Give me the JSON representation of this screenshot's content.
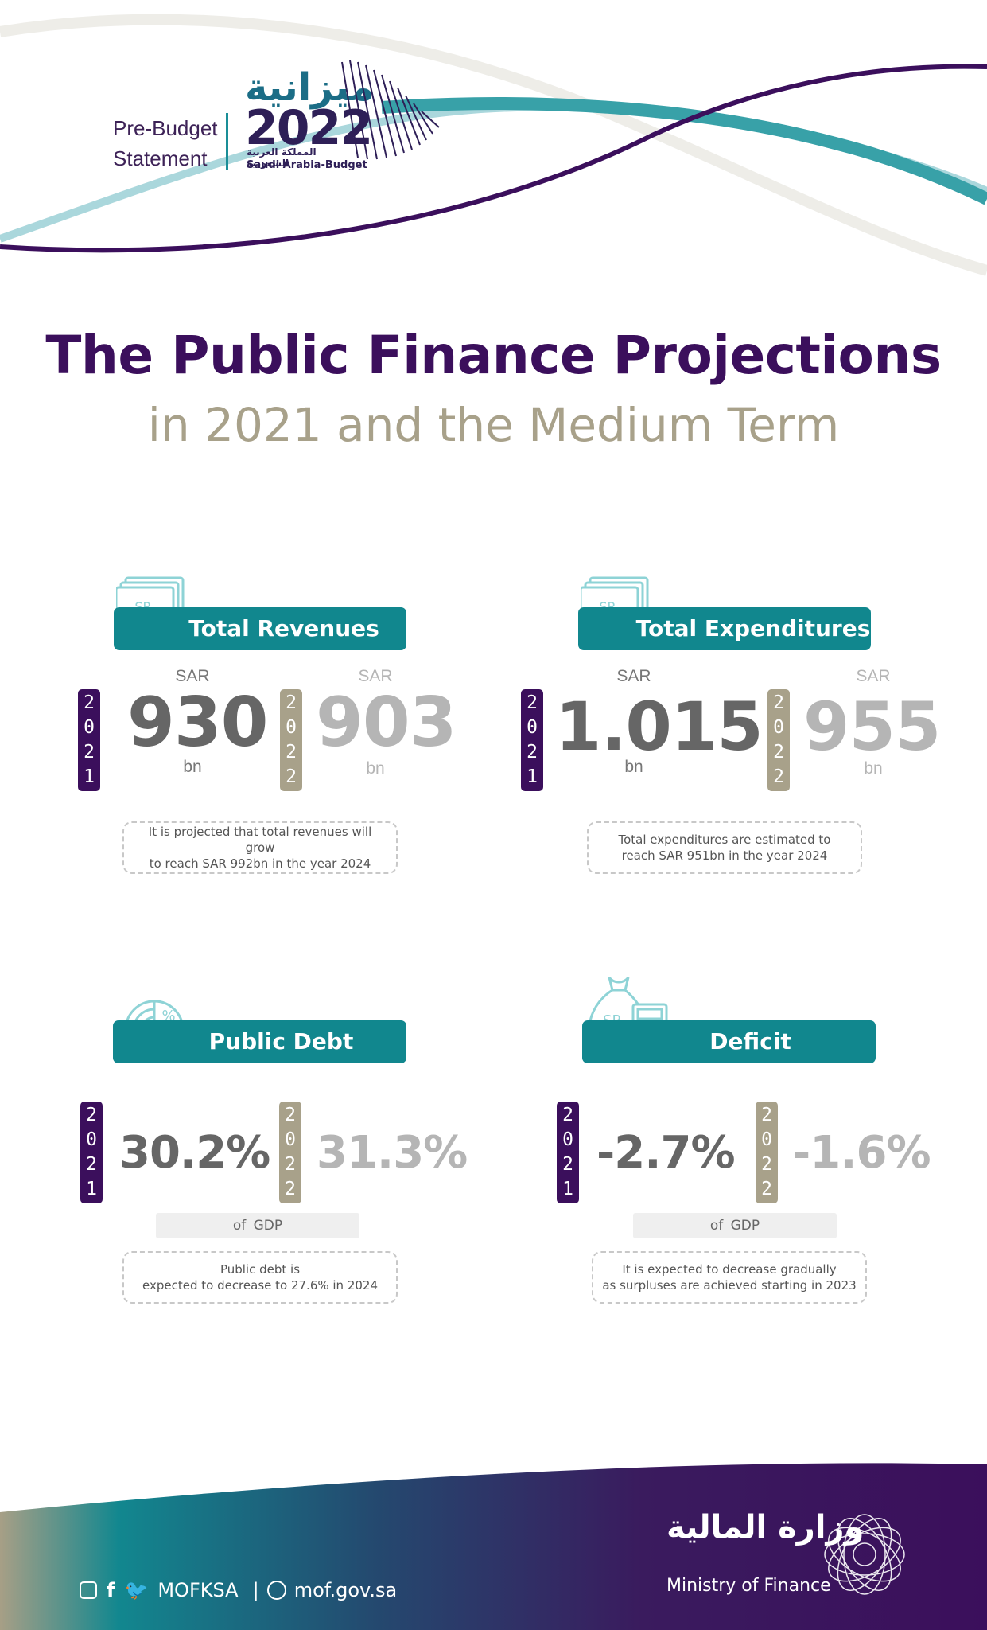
{
  "header": {
    "pre_budget_line1": "Pre-Budget",
    "pre_budget_line2": "Statement",
    "logo_arabic": "ميزانية",
    "logo_year": "2022",
    "logo_sub_arabic": "المملكة العربية السعودية",
    "logo_sub_english": "Saudi Arabia-Budget"
  },
  "title": "The Public Finance Projections",
  "subtitle": "in 2021 and the Medium Term",
  "year_labels": {
    "y2021": "2021",
    "y2022": "2022"
  },
  "revenues": {
    "label": "Total Revenues",
    "currency": "SAR",
    "value_2021": "930",
    "value_2022": "903",
    "unit": "bn",
    "note_line1": "It is projected that total revenues will grow",
    "note_line2": "to reach SAR 992bn in the year 2024"
  },
  "expenditures": {
    "label": "Total Expenditures",
    "currency": "SAR",
    "value_2021": "1.015",
    "value_2022": "955",
    "unit": "bn",
    "note_line1": "Total expenditures are estimated to",
    "note_line2": "reach SAR 951bn in the year 2024"
  },
  "debt": {
    "label": "Public Debt",
    "value_2021": "30.2%",
    "value_2022": "31.3%",
    "of_gdp": "of GDP",
    "note_line1": "Public debt is",
    "note_line2": "expected to decrease to 27.6% in 2024"
  },
  "deficit": {
    "label": "Deficit",
    "value_2021": "-2.7%",
    "value_2022": "-1.6%",
    "of_gdp": "of GDP",
    "note_line1": "It is expected to decrease gradually",
    "note_line2": "as surpluses are achieved starting in 2023"
  },
  "icons": {
    "money": "SR"
  },
  "footer": {
    "handle": "MOFKSA",
    "separator": "|",
    "website": "mof.gov.sa",
    "ministry_arabic": "وزارة المالية",
    "ministry_english": "Ministry of Finance"
  },
  "colors": {
    "purple": "#3b0f5c",
    "teal": "#11878e",
    "beige": "#a8a18a"
  }
}
